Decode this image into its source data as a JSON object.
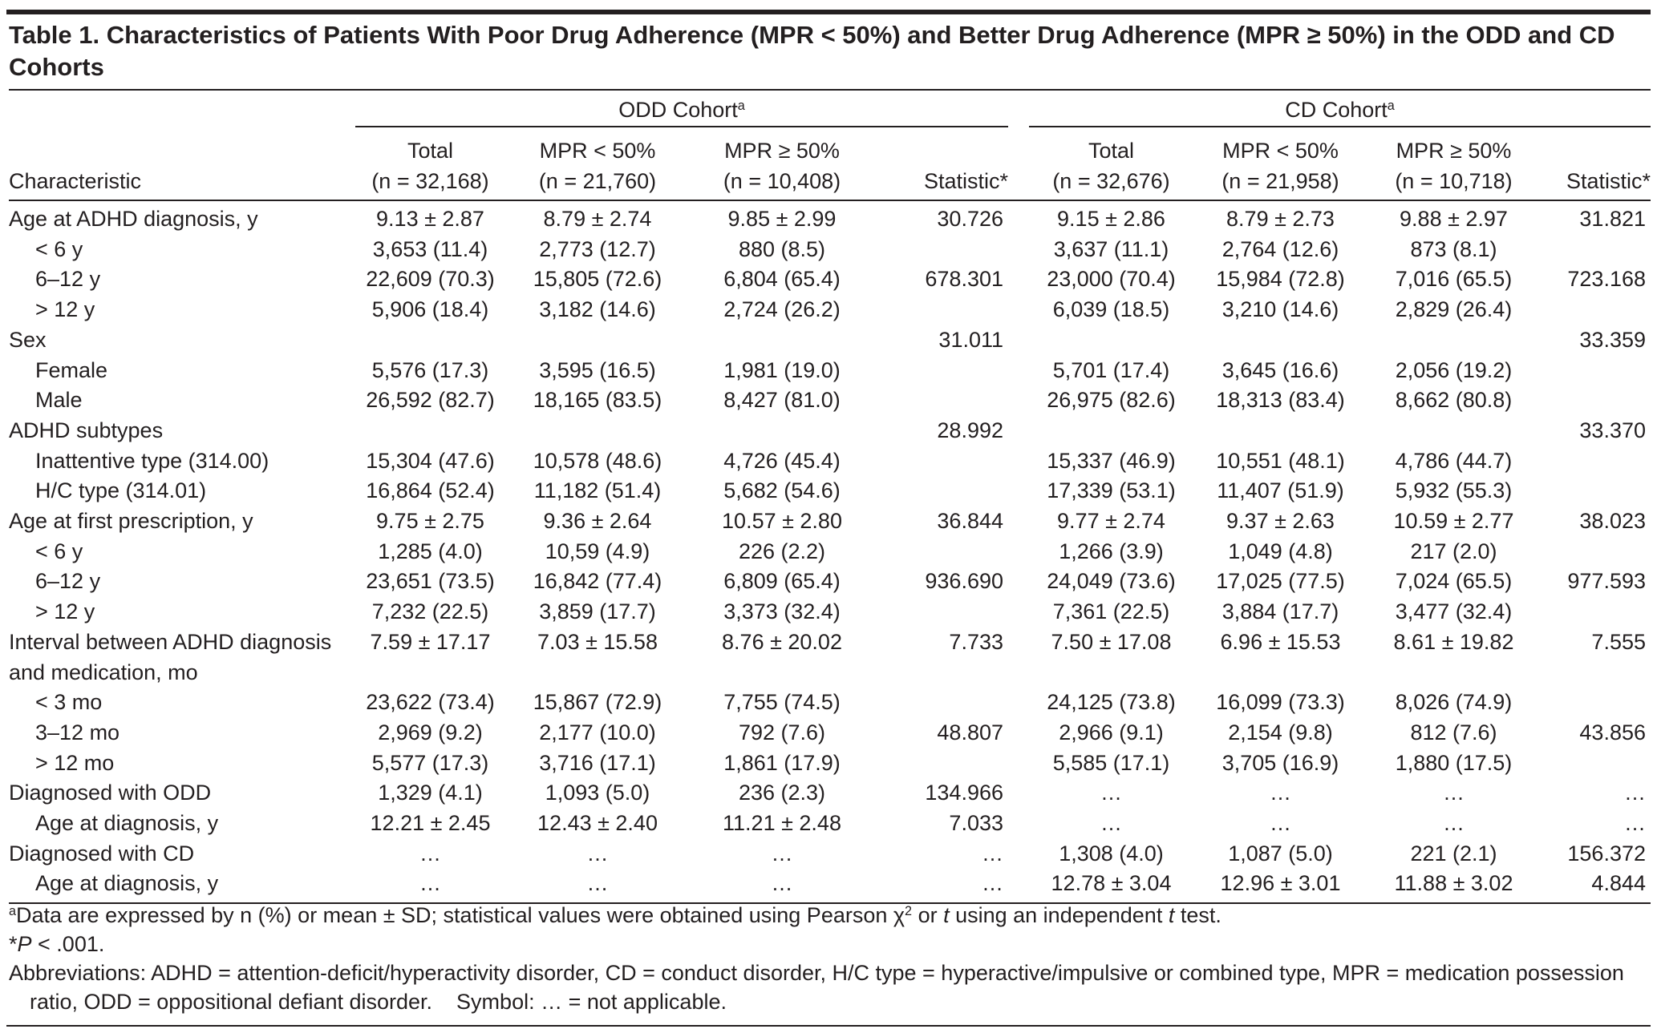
{
  "title": "Table 1. Characteristics of Patients With Poor Drug Adherence (MPR < 50%) and Better Drug Adherence (MPR ≥ 50%) in the ODD and CD Cohorts",
  "header": {
    "characteristic": "Characteristic",
    "groups": [
      {
        "name": "ODD Cohort",
        "note": "a",
        "columns": [
          {
            "label": "Total",
            "n": "(n = 32,168)"
          },
          {
            "label": "MPR < 50%",
            "n": "(n = 21,760)"
          },
          {
            "label": "MPR ≥ 50%",
            "n": "(n = 10,408)"
          },
          {
            "label": "Statistic",
            "note": "*"
          }
        ]
      },
      {
        "name": "CD Cohort",
        "note": "a",
        "columns": [
          {
            "label": "Total",
            "n": "(n = 32,676)"
          },
          {
            "label": "MPR < 50%",
            "n": "(n = 21,958)"
          },
          {
            "label": "MPR ≥ 50%",
            "n": "(n = 10,718)"
          },
          {
            "label": "Statistic",
            "note": "*"
          }
        ]
      }
    ]
  },
  "table": {
    "rows": [
      {
        "label": "Age at ADHD diagnosis, y",
        "cells": [
          "9.13 ± 2.87",
          "8.79 ± 2.74",
          "9.85 ± 2.99",
          "30.726",
          "9.15 ± 2.86",
          "8.79 ± 2.73",
          "9.88 ± 2.97",
          "31.821"
        ]
      },
      {
        "label": "< 6 y",
        "indent": true,
        "cells": [
          "3,653 (11.4)",
          "2,773 (12.7)",
          "880 (8.5)",
          null,
          "3,637 (11.1)",
          "2,764 (12.6)",
          "873 (8.1)",
          null
        ]
      },
      {
        "label": "6–12 y",
        "indent": true,
        "cells": [
          "22,609 (70.3)",
          "15,805 (72.6)",
          "6,804 (65.4)",
          "678.301",
          "23,000 (70.4)",
          "15,984 (72.8)",
          "7,016 (65.5)",
          "723.168"
        ]
      },
      {
        "label": "> 12 y",
        "indent": true,
        "cells": [
          "5,906 (18.4)",
          "3,182 (14.6)",
          "2,724 (26.2)",
          null,
          "6,039 (18.5)",
          "3,210 (14.6)",
          "2,829 (26.4)",
          null
        ]
      },
      {
        "label": "Sex",
        "cells": [
          null,
          null,
          null,
          "31.011",
          null,
          null,
          null,
          "33.359"
        ]
      },
      {
        "label": "Female",
        "indent": true,
        "cells": [
          "5,576 (17.3)",
          "3,595 (16.5)",
          "1,981 (19.0)",
          null,
          "5,701 (17.4)",
          "3,645 (16.6)",
          "2,056 (19.2)",
          null
        ]
      },
      {
        "label": "Male",
        "indent": true,
        "cells": [
          "26,592 (82.7)",
          "18,165 (83.5)",
          "8,427 (81.0)",
          null,
          "26,975 (82.6)",
          "18,313 (83.4)",
          "8,662 (80.8)",
          null
        ]
      },
      {
        "label": "ADHD subtypes",
        "cells": [
          null,
          null,
          null,
          "28.992",
          null,
          null,
          null,
          "33.370"
        ]
      },
      {
        "label": "Inattentive type (314.00)",
        "indent": true,
        "cells": [
          "15,304 (47.6)",
          "10,578 (48.6)",
          "4,726 (45.4)",
          null,
          "15,337 (46.9)",
          "10,551 (48.1)",
          "4,786 (44.7)",
          null
        ]
      },
      {
        "label": "H/C type (314.01)",
        "indent": true,
        "cells": [
          "16,864 (52.4)",
          "11,182 (51.4)",
          "5,682 (54.6)",
          null,
          "17,339 (53.1)",
          "11,407 (51.9)",
          "5,932 (55.3)",
          null
        ]
      },
      {
        "label": "Age at first prescription, y",
        "cells": [
          "9.75 ± 2.75",
          "9.36 ± 2.64",
          "10.57 ± 2.80",
          "36.844",
          "9.77 ± 2.74",
          "9.37 ± 2.63",
          "10.59 ± 2.77",
          "38.023"
        ]
      },
      {
        "label": "<  6 y",
        "indent": true,
        "cells": [
          "1,285 (4.0)",
          "10,59 (4.9)",
          "226 (2.2)",
          null,
          "1,266 (3.9)",
          "1,049 (4.8)",
          "217 (2.0)",
          null
        ]
      },
      {
        "label": "6–12 y",
        "indent": true,
        "cells": [
          "23,651 (73.5)",
          "16,842 (77.4)",
          "6,809 (65.4)",
          "936.690",
          "24,049 (73.6)",
          "17,025 (77.5)",
          "7,024 (65.5)",
          "977.593"
        ]
      },
      {
        "label": "> 12 y",
        "indent": true,
        "cells": [
          "7,232 (22.5)",
          "3,859 (17.7)",
          "3,373 (32.4)",
          null,
          "7,361 (22.5)",
          "3,884 (17.7)",
          "3,477 (32.4)",
          null
        ]
      },
      {
        "label": "Interval between ADHD diagnosis and medication, mo",
        "cells": [
          "7.59 ± 17.17",
          "7.03 ± 15.58",
          "8.76 ± 20.02",
          "7.733",
          "7.50 ± 17.08",
          "6.96 ± 15.53",
          "8.61 ± 19.82",
          "7.555"
        ]
      },
      {
        "label": "< 3 mo",
        "indent": true,
        "cells": [
          "23,622 (73.4)",
          "15,867 (72.9)",
          "7,755 (74.5)",
          null,
          "24,125 (73.8)",
          "16,099 (73.3)",
          "8,026 (74.9)",
          null
        ]
      },
      {
        "label": "3–12 mo",
        "indent": true,
        "cells": [
          "2,969 (9.2)",
          "2,177 (10.0)",
          "792 (7.6)",
          "48.807",
          "2,966 (9.1)",
          "2,154 (9.8)",
          "812 (7.6)",
          "43.856"
        ]
      },
      {
        "label": "> 12 mo",
        "indent": true,
        "cells": [
          "5,577 (17.3)",
          "3,716 (17.1)",
          "1,861 (17.9)",
          null,
          "5,585 (17.1)",
          "3,705 (16.9)",
          "1,880 (17.5)",
          null
        ]
      },
      {
        "label": "Diagnosed with ODD",
        "cells": [
          "1,329 (4.1)",
          "1,093 (5.0)",
          "236 (2.3)",
          "134.966",
          "…",
          "…",
          "…",
          "…"
        ]
      },
      {
        "label": "Age at diagnosis, y",
        "indent": true,
        "cells": [
          "12.21 ± 2.45",
          "12.43 ± 2.40",
          "11.21 ± 2.48",
          "7.033",
          "…",
          "…",
          "…",
          "…"
        ]
      },
      {
        "label": "Diagnosed with CD",
        "cells": [
          "…",
          "…",
          "…",
          "…",
          "1,308 (4.0)",
          "1,087 (5.0)",
          "221 (2.1)",
          "156.372"
        ]
      },
      {
        "label": "Age at diagnosis, y",
        "indent": true,
        "cells": [
          "…",
          "…",
          "…",
          "…",
          "12.78 ± 3.04",
          "12.96 ± 3.01",
          "11.88 ± 3.02",
          "4.844"
        ]
      }
    ]
  },
  "footnotes": [
    [
      "a",
      "Data are expressed by n (%) or mean ± SD; statistical values were obtained using Pearson χ",
      "2",
      " or ",
      "t",
      " using an independent ",
      "t",
      " test."
    ],
    [
      "*",
      "P",
      " < .001."
    ],
    [
      "Abbreviations: ADHD = attention-deficit/hyperactivity disorder, CD = conduct disorder, H/C type = hyperactive/impulsive or combined type, MPR = medication possession ratio, ODD = oppositional defiant disorder.",
      "Symbol: … = not applicable."
    ]
  ]
}
